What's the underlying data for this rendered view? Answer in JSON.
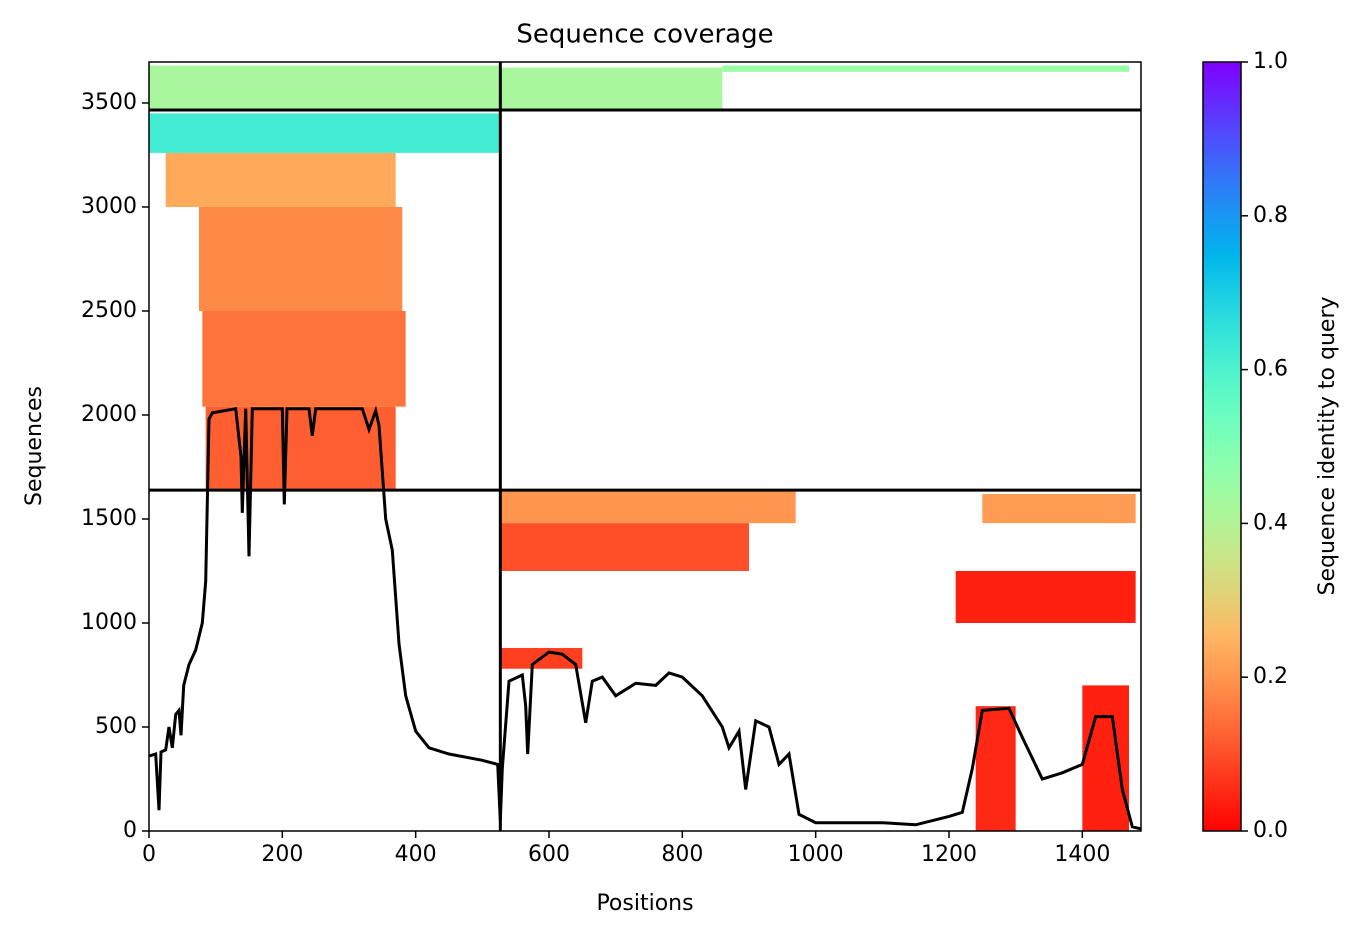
{
  "chart_data": {
    "type": "coverage",
    "title": "Sequence coverage",
    "xlabel": "Positions",
    "ylabel": "Sequences",
    "xlim": [
      0,
      1488
    ],
    "ylim": [
      0,
      3697
    ],
    "xticks": [
      0,
      200,
      400,
      600,
      800,
      1000,
      1200,
      1400
    ],
    "yticks": [
      0,
      500,
      1000,
      1500,
      2000,
      2500,
      3000,
      3500
    ],
    "colormap": "rainbow_r",
    "colorbar": {
      "label": "Sequence identity to query",
      "lim": [
        0,
        1
      ],
      "ticks": [
        {
          "value": 0,
          "label": "0.0"
        },
        {
          "value": 0.2,
          "label": "0.2"
        },
        {
          "value": 0.4,
          "label": "0.4"
        },
        {
          "value": 0.6,
          "label": "0.6"
        },
        {
          "value": 0.8,
          "label": "0.8"
        },
        {
          "value": 1,
          "label": "1.0"
        }
      ]
    },
    "boundaries_x": [
      527
    ],
    "boundaries_y": [
      1639,
      3466
    ],
    "blocks": [
      {
        "x0": 85,
        "x1": 370,
        "y0": 1639,
        "y1": 2040,
        "identity": 0.12
      },
      {
        "x0": 80,
        "x1": 385,
        "y0": 2040,
        "y1": 2500,
        "identity": 0.15
      },
      {
        "x0": 75,
        "x1": 380,
        "y0": 2500,
        "y1": 3000,
        "identity": 0.18
      },
      {
        "x0": 25,
        "x1": 370,
        "y0": 3000,
        "y1": 3260,
        "identity": 0.23
      },
      {
        "x0": 0,
        "x1": 527,
        "y0": 3260,
        "y1": 3450,
        "identity": 0.62
      },
      {
        "x0": 0,
        "x1": 527,
        "y0": 3470,
        "y1": 3680,
        "identity": 0.42
      },
      {
        "x0": 527,
        "x1": 860,
        "y0": 3470,
        "y1": 3670,
        "identity": 0.42
      },
      {
        "x0": 860,
        "x1": 1470,
        "y0": 3650,
        "y1": 3680,
        "identity": 0.45
      },
      {
        "x0": 527,
        "x1": 970,
        "y0": 1480,
        "y1": 1639,
        "identity": 0.2
      },
      {
        "x0": 1250,
        "x1": 1480,
        "y0": 1480,
        "y1": 1620,
        "identity": 0.21
      },
      {
        "x0": 527,
        "x1": 900,
        "y0": 1250,
        "y1": 1480,
        "identity": 0.1
      },
      {
        "x0": 527,
        "x1": 650,
        "y0": 780,
        "y1": 880,
        "identity": 0.08
      },
      {
        "x0": 1240,
        "x1": 1300,
        "y0": 0,
        "y1": 600,
        "identity": 0.05
      },
      {
        "x0": 1400,
        "x1": 1470,
        "y0": 0,
        "y1": 700,
        "identity": 0.04
      },
      {
        "x0": 1210,
        "x1": 1480,
        "y0": 1000,
        "y1": 1250,
        "identity": 0.04
      }
    ],
    "line": {
      "x": [
        0,
        10,
        15,
        18,
        25,
        30,
        35,
        40,
        45,
        48,
        52,
        60,
        70,
        80,
        85,
        90,
        95,
        130,
        138,
        140,
        145,
        150,
        155,
        200,
        203,
        207,
        240,
        245,
        250,
        320,
        330,
        340,
        345,
        355,
        365,
        375,
        385,
        400,
        420,
        450,
        500,
        523,
        527,
        530,
        540,
        560,
        565,
        568,
        575,
        600,
        620,
        640,
        655,
        665,
        680,
        700,
        730,
        760,
        780,
        800,
        830,
        860,
        870,
        885,
        895,
        910,
        930,
        945,
        960,
        975,
        1000,
        1050,
        1100,
        1150,
        1200,
        1220,
        1235,
        1250,
        1290,
        1310,
        1340,
        1370,
        1400,
        1420,
        1445,
        1460,
        1475,
        1488
      ],
      "y": [
        360,
        370,
        100,
        380,
        390,
        500,
        400,
        560,
        580,
        460,
        700,
        800,
        870,
        1000,
        1200,
        1980,
        2010,
        2030,
        1800,
        1530,
        2030,
        1320,
        2030,
        2030,
        1570,
        2030,
        2030,
        1900,
        2030,
        2030,
        1930,
        2020,
        1950,
        1500,
        1350,
        900,
        650,
        480,
        400,
        370,
        340,
        320,
        50,
        300,
        720,
        750,
        600,
        370,
        800,
        860,
        850,
        800,
        520,
        720,
        740,
        650,
        710,
        700,
        760,
        740,
        650,
        500,
        400,
        480,
        200,
        530,
        500,
        320,
        370,
        80,
        40,
        40,
        40,
        30,
        70,
        90,
        300,
        580,
        590,
        450,
        250,
        280,
        320,
        550,
        550,
        200,
        20,
        10
      ]
    }
  }
}
